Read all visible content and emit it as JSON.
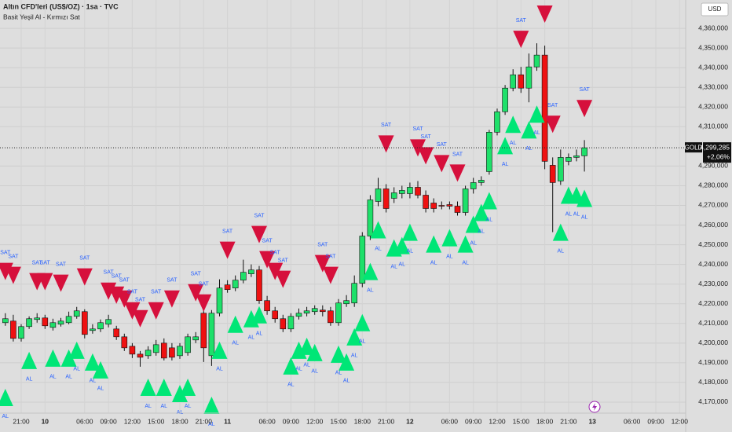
{
  "chart_data": {
    "type": "candlestick",
    "title": "Altın CFD'leri (US$/OZ) · 1sa · TVC",
    "subtitle": "Basit Yeşil Al - Kırmızı Sat",
    "currency": "USD",
    "symbol": "GOLD",
    "last_label": "4,299,285",
    "change": "+2,06%",
    "categories": [
      null,
      null,
      "21:00",
      null,
      null,
      "10",
      null,
      null,
      null,
      null,
      "06:00",
      null,
      null,
      "09:00",
      null,
      null,
      "12:00",
      null,
      null,
      "15:00",
      null,
      null,
      "18:00",
      null,
      null,
      "21:00",
      null,
      null,
      "11",
      null,
      null,
      null,
      null,
      "06:00",
      null,
      null,
      "09:00",
      null,
      null,
      "12:00",
      null,
      null,
      "15:00",
      null,
      null,
      "18:00",
      null,
      null,
      "21:00",
      null,
      null,
      "12",
      null,
      null,
      null,
      null,
      "06:00",
      null,
      null,
      "09:00",
      null,
      null,
      "12:00",
      null,
      null,
      "15:00",
      null,
      null,
      "18:00",
      null,
      null,
      "21:00",
      null,
      null,
      "13",
      null,
      null,
      null,
      null,
      "06:00",
      null,
      null,
      "09:00",
      null,
      null,
      "12:00"
    ],
    "open": [
      4210400,
      4211200,
      4202400,
      4208400,
      4212000,
      4212800,
      4208000,
      4209600,
      4210400,
      4213600,
      4216000,
      4206400,
      4207200,
      4209600,
      4207200,
      4203200,
      4198400,
      4194400,
      4193600,
      4195200,
      4200000,
      4197600,
      4193600,
      4195200,
      4201600,
      4215200,
      4193600,
      4215200,
      4229600,
      4228000,
      4232000,
      4235200,
      4237200,
      4221600,
      4216400,
      4212400,
      4207200,
      4213600,
      4215200,
      4216000,
      4216800,
      4216400,
      4210400,
      4220000,
      4220400,
      4230400,
      4254400,
      4272000,
      4278400,
      4273600,
      4276000,
      4276000,
      4279200,
      4275200,
      4271200,
      4270000,
      4270400,
      4269600,
      4266400,
      4278400,
      4281600,
      4287200,
      4307200,
      4317600,
      4329600,
      4336400,
      4329600,
      4340400,
      4346400,
      4290400,
      4282400,
      4292400,
      4294400,
      4295200,
      null,
      null,
      null,
      null,
      null,
      null,
      null,
      null,
      null,
      null,
      null,
      null
    ],
    "high": [
      4215200,
      4214400,
      4209600,
      4213600,
      4215200,
      4214400,
      4212400,
      4212800,
      4216000,
      4218400,
      4217200,
      4209600,
      4212000,
      4214400,
      4208800,
      4204800,
      4200000,
      4196000,
      4198400,
      4201600,
      4202400,
      4200000,
      4200000,
      4204800,
      4205600,
      4217600,
      4216800,
      4232400,
      4232000,
      4234400,
      4242400,
      4240000,
      4239200,
      4224000,
      4218400,
      4214400,
      4215200,
      4217600,
      4218400,
      4219200,
      4219200,
      4218400,
      4222400,
      4224400,
      4234400,
      4256400,
      4275200,
      4284000,
      4280800,
      4279200,
      4280000,
      4281600,
      4282400,
      4277600,
      4273600,
      4272000,
      4272000,
      4272000,
      4280000,
      4284000,
      4284800,
      4308400,
      4319200,
      4331200,
      4339200,
      4340400,
      4347200,
      4352400,
      4351200,
      4294400,
      4298400,
      4296400,
      4298400,
      4303200,
      null,
      null,
      null,
      null,
      null,
      null,
      null,
      null,
      null,
      null,
      null,
      null
    ],
    "low": [
      4208800,
      4200800,
      4200800,
      4207200,
      4210400,
      4207200,
      4206400,
      4208400,
      4209600,
      4212400,
      4202400,
      4204800,
      4205600,
      4208000,
      4201600,
      4196000,
      4192400,
      4188000,
      4192000,
      4193600,
      4191200,
      4191200,
      4192000,
      4193600,
      4200000,
      4190400,
      4188400,
      4213600,
      4225600,
      4226400,
      4230400,
      4233600,
      4220000,
      4214400,
      4210400,
      4205600,
      4205600,
      4212000,
      4213600,
      4214400,
      4213600,
      4208800,
      4208800,
      4218400,
      4218400,
      4228400,
      4252400,
      4269600,
      4266400,
      4271200,
      4273600,
      4273600,
      4273600,
      4266400,
      4266400,
      4268000,
      4268000,
      4264800,
      4264800,
      4276000,
      4280000,
      4285600,
      4305600,
      4316000,
      4328000,
      4327200,
      4322400,
      4338400,
      4288400,
      4256400,
      4280400,
      4290400,
      4292400,
      4287200,
      null,
      null,
      null,
      null,
      null,
      null,
      null,
      null,
      null,
      null,
      null,
      null
    ],
    "close": [
      4212400,
      4202400,
      4208400,
      4212400,
      4212800,
      4208800,
      4210400,
      4211200,
      4213600,
      4216400,
      4204400,
      4207200,
      4210400,
      4212000,
      4203200,
      4197600,
      4194400,
      4192800,
      4196400,
      4199200,
      4192400,
      4192800,
      4198400,
      4203200,
      4203200,
      4197600,
      4215200,
      4228000,
      4227200,
      4232000,
      4236000,
      4237200,
      4221600,
      4216400,
      4212400,
      4207200,
      4213600,
      4215200,
      4216400,
      4217600,
      4216000,
      4210400,
      4220400,
      4221600,
      4230400,
      4254400,
      4272800,
      4278400,
      4268400,
      4276400,
      4277600,
      4279200,
      4275200,
      4268400,
      4268400,
      4269600,
      4269600,
      4266400,
      4278400,
      4281600,
      4282800,
      4307200,
      4317600,
      4329600,
      4336400,
      4329600,
      4340400,
      4346400,
      4292400,
      4281600,
      4294400,
      4294400,
      4295200,
      4299285,
      null,
      null,
      null,
      null,
      null,
      null,
      null,
      null,
      null,
      null,
      null,
      null
    ],
    "up_color": "#1ee06a",
    "down_color": "#ee1111",
    "buy_label": "AL",
    "sell_label": "SAT",
    "buy_color": "#00e676",
    "sell_color": "#d6103c",
    "label_color": "#2962ff",
    "buy_signals": [
      4172400,
      null,
      null,
      4191200,
      null,
      null,
      4192400,
      null,
      4192400,
      4196400,
      null,
      4190400,
      4186400,
      null,
      null,
      null,
      null,
      null,
      4177600,
      null,
      4177600,
      null,
      4174400,
      4177600,
      null,
      null,
      4168400,
      4196400,
      null,
      4209600,
      null,
      4212400,
      4214400,
      null,
      null,
      null,
      4188400,
      4196400,
      4198400,
      4195200,
      null,
      null,
      4194400,
      4190400,
      4203200,
      4210400,
      4236400,
      4257600,
      null,
      4248400,
      4249600,
      4256400,
      null,
      null,
      4250400,
      null,
      4253600,
      null,
      4250400,
      4260400,
      4266400,
      4272400,
      null,
      4300400,
      4311200,
      null,
      4308400,
      4316400,
      null,
      null,
      4256400,
      4275200,
      4275200,
      4273600,
      null,
      null,
      null,
      null,
      null,
      null,
      null,
      null,
      null,
      null,
      null,
      null
    ],
    "sell_signals": [
      4236400,
      4234400,
      null,
      null,
      4231200,
      4231200,
      null,
      4230400,
      null,
      null,
      4233600,
      null,
      null,
      4226400,
      4224400,
      4222400,
      4216400,
      4212400,
      null,
      4216400,
      null,
      4222400,
      null,
      null,
      4225600,
      4220400,
      null,
      null,
      4247200,
      null,
      null,
      null,
      4255200,
      4242400,
      4236400,
      4232400,
      null,
      null,
      null,
      null,
      4240400,
      4234400,
      null,
      null,
      null,
      null,
      null,
      null,
      4301200,
      null,
      null,
      null,
      4299200,
      4295200,
      null,
      4291200,
      null,
      4286400,
      null,
      null,
      null,
      null,
      null,
      null,
      null,
      4354400,
      null,
      null,
      4367200,
      4311200,
      null,
      null,
      null,
      4319200,
      null,
      null,
      null,
      null,
      null,
      null,
      null,
      null,
      null,
      null,
      null,
      null
    ],
    "ylim": [
      4164800,
      4374400
    ],
    "yticks": [
      {
        "value": 4170000,
        "label": "4,170,000"
      },
      {
        "value": 4180000,
        "label": "4,180,000"
      },
      {
        "value": 4190000,
        "label": "4,190,000"
      },
      {
        "value": 4200000,
        "label": "4,200,000"
      },
      {
        "value": 4210000,
        "label": "4,210,000"
      },
      {
        "value": 4220000,
        "label": "4,220,000"
      },
      {
        "value": 4230000,
        "label": "4,230,000"
      },
      {
        "value": 4240000,
        "label": "4,240,000"
      },
      {
        "value": 4250000,
        "label": "4,250,000"
      },
      {
        "value": 4260000,
        "label": "4,260,000"
      },
      {
        "value": 4270000,
        "label": "4,270,000"
      },
      {
        "value": 4280000,
        "label": "4,280,000"
      },
      {
        "value": 4290000,
        "label": "4,290,000"
      },
      {
        "value": 4310000,
        "label": "4,310,000"
      },
      {
        "value": 4320000,
        "label": "4,320,000"
      },
      {
        "value": 4330000,
        "label": "4,330,000"
      },
      {
        "value": 4340000,
        "label": "4,340,000"
      },
      {
        "value": 4350000,
        "label": "4,350,000"
      },
      {
        "value": 4360000,
        "label": "4,360,000"
      }
    ],
    "grid": true
  }
}
